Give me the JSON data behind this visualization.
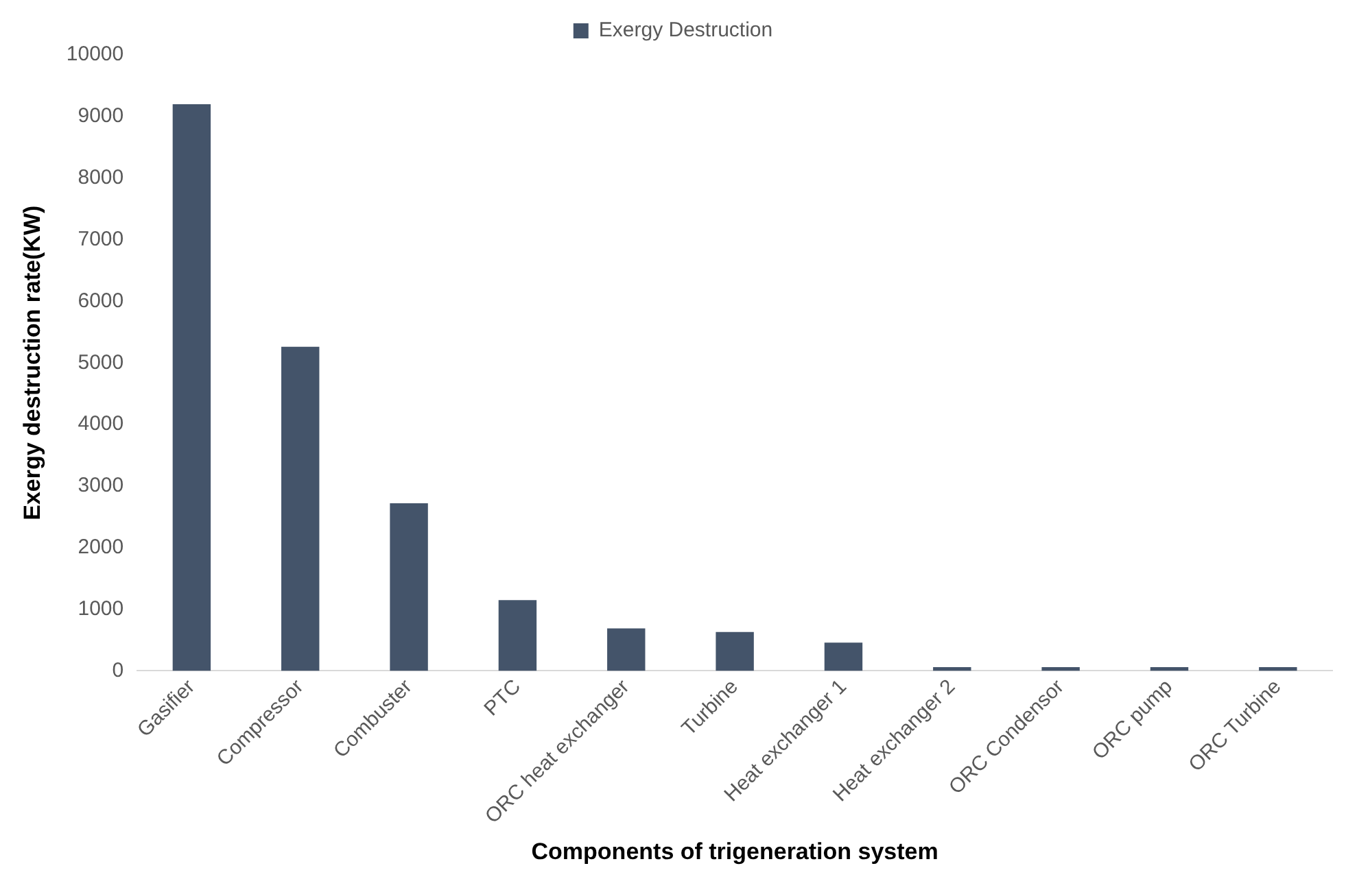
{
  "chart_data": {
    "type": "bar",
    "xlabel": "Components of trigeneration system",
    "ylabel": "Exergy destruction rate(KW)",
    "categories": [
      "Gasifier",
      "Compressor",
      "Combuster",
      "PTC",
      "ORC heat exchanger",
      "Turbine",
      "Heat exchanger 1",
      "Heat exchanger 2",
      "ORC Condensor",
      "ORC pump",
      "ORC Turbine"
    ],
    "series": [
      {
        "name": "Exergy Destruction",
        "color": "#44546a",
        "values": [
          9200,
          5260,
          2720,
          1150,
          690,
          630,
          460,
          60,
          60,
          60,
          60
        ]
      }
    ],
    "ylim": [
      0,
      10000
    ],
    "yticks": [
      0,
      1000,
      2000,
      3000,
      4000,
      5000,
      6000,
      7000,
      8000,
      9000,
      10000
    ],
    "grid": false,
    "legend": "top"
  }
}
